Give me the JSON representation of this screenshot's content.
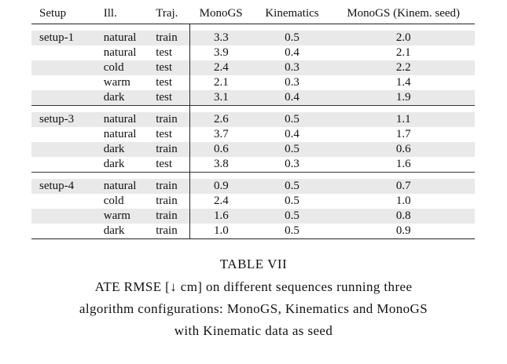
{
  "table": {
    "headers": [
      "Setup",
      "Ill.",
      "Traj.",
      "MonoGS",
      "Kinematics",
      "MonoGS (Kinem. seed)"
    ],
    "groups": [
      {
        "setup": "setup-1",
        "rows": [
          [
            "natural",
            "train",
            "3.3",
            "0.5",
            "2.0"
          ],
          [
            "natural",
            "test",
            "3.9",
            "0.4",
            "2.1"
          ],
          [
            "cold",
            "test",
            "2.4",
            "0.3",
            "2.2"
          ],
          [
            "warm",
            "test",
            "2.1",
            "0.3",
            "1.4"
          ],
          [
            "dark",
            "test",
            "3.1",
            "0.4",
            "1.9"
          ]
        ]
      },
      {
        "setup": "setup-3",
        "rows": [
          [
            "natural",
            "train",
            "2.6",
            "0.5",
            "1.1"
          ],
          [
            "natural",
            "test",
            "3.7",
            "0.4",
            "1.7"
          ],
          [
            "dark",
            "train",
            "0.6",
            "0.5",
            "0.6"
          ],
          [
            "dark",
            "test",
            "3.8",
            "0.3",
            "1.6"
          ]
        ]
      },
      {
        "setup": "setup-4",
        "rows": [
          [
            "natural",
            "train",
            "0.9",
            "0.5",
            "0.7"
          ],
          [
            "cold",
            "train",
            "2.4",
            "0.5",
            "1.0"
          ],
          [
            "warm",
            "train",
            "1.6",
            "0.5",
            "0.8"
          ],
          [
            "dark",
            "train",
            "1.0",
            "0.5",
            "0.9"
          ]
        ]
      }
    ]
  },
  "caption": {
    "label": "TABLE VII",
    "line1": "ATE RMSE [↓ cm] on different sequences running three",
    "line2": "algorithm configurations: MonoGS, Kinematics and MonoGS",
    "line3": "with Kinematic data as seed"
  }
}
